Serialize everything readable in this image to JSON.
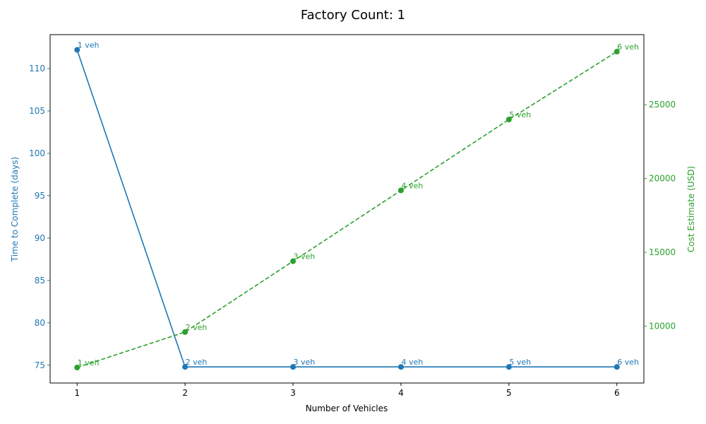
{
  "chart_data": {
    "type": "line",
    "title": "Factory Count: 1",
    "xlabel": "Number of Vehicles",
    "x": [
      1,
      2,
      3,
      4,
      5,
      6
    ],
    "xlim": [
      0.75,
      6.25
    ],
    "x_ticks": [
      1,
      2,
      3,
      4,
      5,
      6
    ],
    "grid": false,
    "left_axis": {
      "label": "Time to Complete (days)",
      "ylim": [
        72.9,
        114.0
      ],
      "ticks": [
        75,
        80,
        85,
        90,
        95,
        100,
        105,
        110
      ],
      "color": "#1f77b4"
    },
    "right_axis": {
      "label": "Cost Estimate (USD)",
      "ylim": [
        6150,
        29750
      ],
      "ticks": [
        10000,
        15000,
        20000,
        25000
      ],
      "color": "#2ca02c"
    },
    "series": [
      {
        "axis": "left",
        "color": "#1f77b4",
        "line_style": "solid",
        "marker": "circle",
        "values": [
          112.2,
          74.8,
          74.8,
          74.8,
          74.8,
          74.8
        ],
        "point_labels": [
          "1 veh",
          "2 veh",
          "3 veh",
          "4 veh",
          "5 veh",
          "6 veh"
        ]
      },
      {
        "axis": "right",
        "color": "#2ca02c",
        "line_style": "dashed",
        "marker": "circle",
        "values": [
          7200,
          9600,
          14400,
          19200,
          24000,
          28600
        ],
        "point_labels": [
          "1 veh",
          "2 veh",
          "3 veh",
          "4 veh",
          "5 veh",
          "6 veh"
        ]
      }
    ]
  }
}
